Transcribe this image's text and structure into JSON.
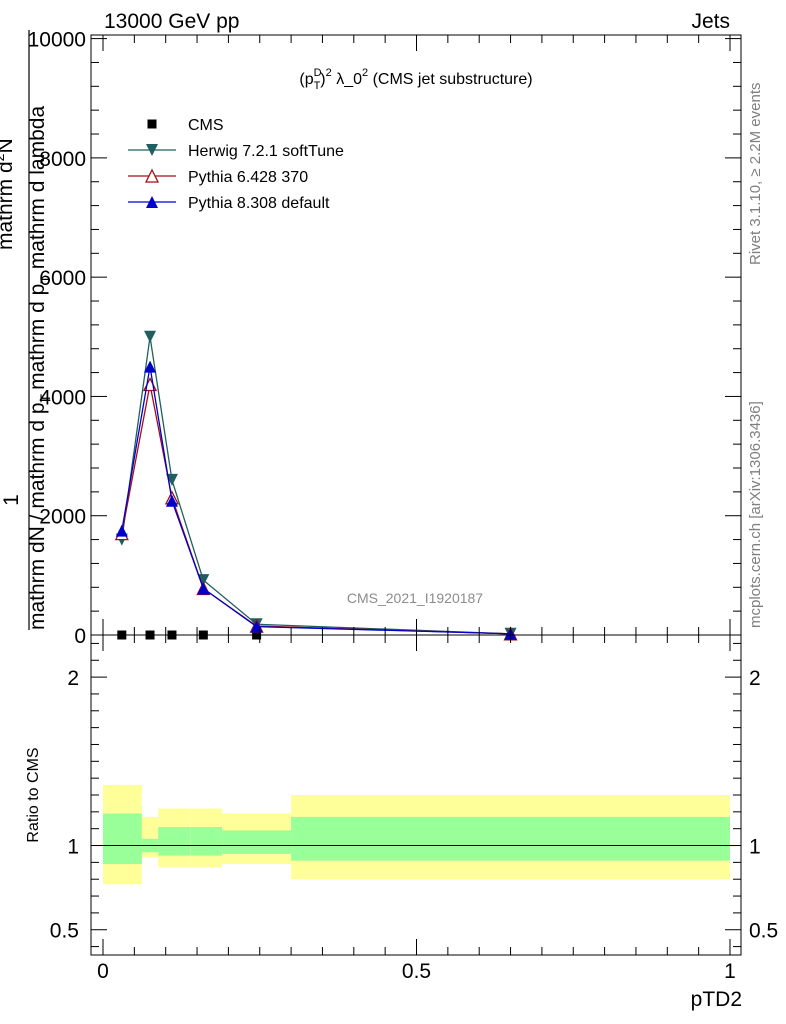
{
  "header": {
    "left_title": "13000 GeV pp",
    "right_title": "Jets"
  },
  "side_labels": {
    "rivet": "Rivet 3.1.10, ≥ 2.2M events",
    "mcplots": "mcplots.cern.ch [arXiv:1306.3436]"
  },
  "watermark": "CMS_2021_I1920187",
  "colors": {
    "cms": "#000000",
    "herwig": "#1f5f5f",
    "pythia6": "#a50f15",
    "pythia8": "#0000cc",
    "band_inner": "#99ff99",
    "band_outer": "#ffff99"
  },
  "chart_data": [
    {
      "type": "line",
      "title_parts": {
        "p": "(p",
        "sup_d": "D",
        "sub_t": "T",
        "close": ")",
        "sup2": "2",
        "lambda": " λ_0",
        "sup3": "2",
        "rest": " (CMS jet substructure)"
      },
      "ylabel_parts": {
        "one": "1",
        "num": "mathrm dN / mathrm d p",
        "sub_t": "T",
        "den": "mathrm d p",
        "den2": " mathrm d lambda",
        "d2n": "mathrm d",
        "d2n_sup": "2",
        "d2n_n": "N"
      },
      "xlim": [
        0,
        1
      ],
      "ylim": [
        0,
        10000
      ],
      "yticks": [
        0,
        2000,
        4000,
        6000,
        8000,
        10000
      ],
      "ytick_labels": [
        "0",
        "2000",
        "4000",
        "6000",
        "8000",
        "10000"
      ],
      "legend_position": "top-left",
      "series": [
        {
          "name": "CMS",
          "marker": "square",
          "x": [
            0.03,
            0.075,
            0.11,
            0.16,
            0.245
          ],
          "y": [
            0,
            0,
            0,
            0,
            0
          ]
        },
        {
          "name": "Herwig 7.2.1 softTune",
          "marker": "triangle-down",
          "x": [
            0.03,
            0.075,
            0.11,
            0.16,
            0.245,
            0.65
          ],
          "y": [
            1600,
            5000,
            2600,
            920,
            180,
            20
          ]
        },
        {
          "name": "Pythia 6.428 370",
          "marker": "triangle-up-open",
          "x": [
            0.03,
            0.075,
            0.11,
            0.16,
            0.245,
            0.65
          ],
          "y": [
            1700,
            4200,
            2300,
            780,
            150,
            20
          ]
        },
        {
          "name": "Pythia 8.308 default",
          "marker": "triangle-up",
          "x": [
            0.03,
            0.075,
            0.11,
            0.16,
            0.245,
            0.65
          ],
          "y": [
            1750,
            4500,
            2250,
            780,
            140,
            20
          ]
        }
      ]
    },
    {
      "type": "area",
      "ylabel": "Ratio to CMS",
      "xlabel": "pTD2",
      "xlim": [
        0,
        1
      ],
      "ylim": [
        0.35,
        2.25
      ],
      "yticks": [
        0.5,
        1,
        2
      ],
      "ytick_labels": [
        "0.5",
        "1",
        "2"
      ],
      "xticks": [
        0,
        0.5,
        1
      ],
      "xtick_labels": [
        "0",
        "0.5",
        "1"
      ],
      "reference": 1,
      "bands": [
        {
          "x0": 0.0,
          "x1": 0.062,
          "outer": [
            0.77,
            1.36
          ],
          "inner": [
            0.89,
            1.19
          ]
        },
        {
          "x0": 0.062,
          "x1": 0.088,
          "outer": [
            0.93,
            1.17
          ],
          "inner": [
            0.96,
            1.04
          ]
        },
        {
          "x0": 0.088,
          "x1": 0.14,
          "outer": [
            0.87,
            1.22
          ],
          "inner": [
            0.94,
            1.11
          ]
        },
        {
          "x0": 0.14,
          "x1": 0.19,
          "outer": [
            0.87,
            1.22
          ],
          "inner": [
            0.94,
            1.11
          ]
        },
        {
          "x0": 0.19,
          "x1": 0.3,
          "outer": [
            0.89,
            1.19
          ],
          "inner": [
            0.95,
            1.09
          ]
        },
        {
          "x0": 0.3,
          "x1": 1.0,
          "outer": [
            0.8,
            1.3
          ],
          "inner": [
            0.91,
            1.17
          ]
        }
      ]
    }
  ]
}
